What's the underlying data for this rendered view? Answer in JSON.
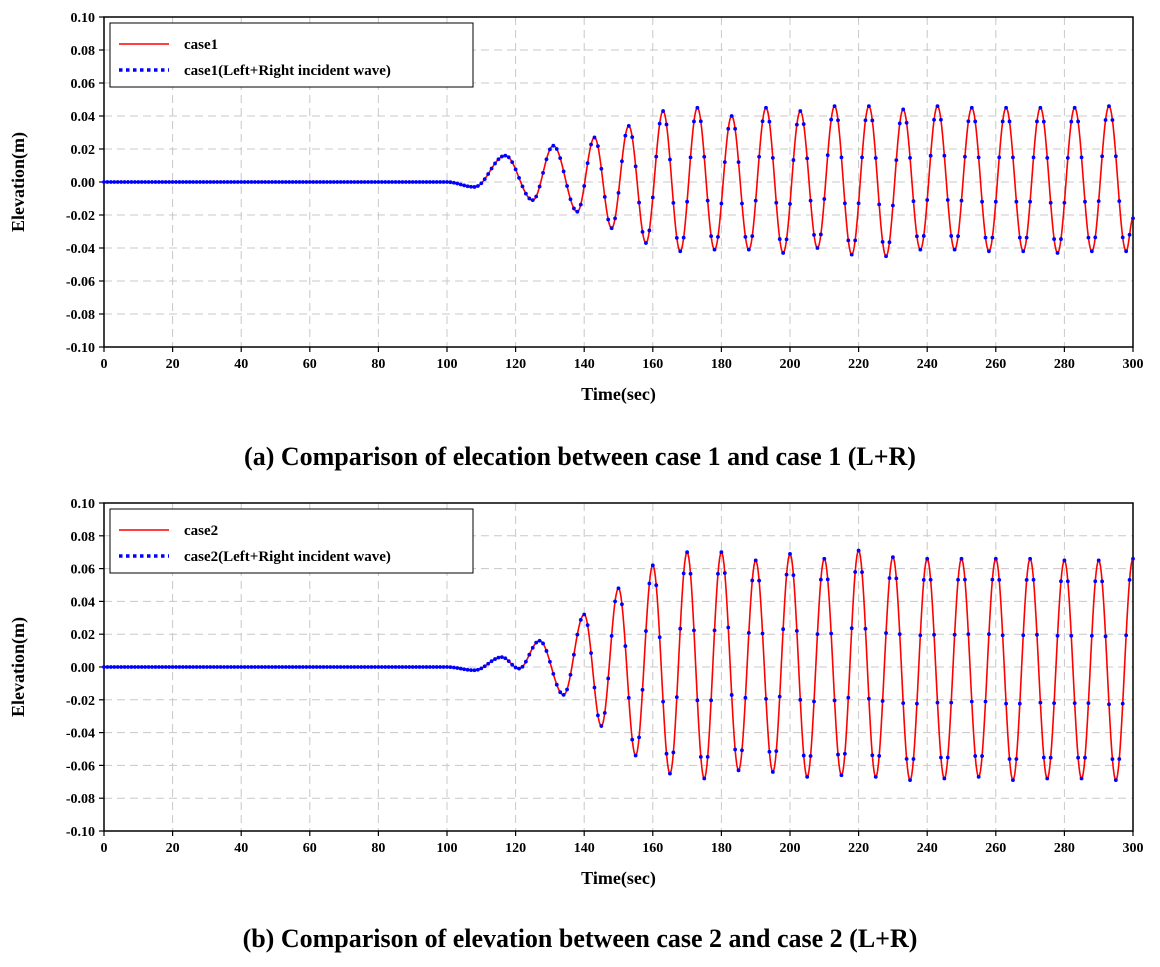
{
  "colors": {
    "series_solid": "#ff0000",
    "series_dotted": "#0000ff",
    "grid": "#c8c8c8"
  },
  "chart_data": [
    {
      "type": "line",
      "caption": "(a) Comparison of elecation between case 1 and case 1 (L+R)",
      "xlabel": "Time(sec)",
      "ylabel": "Elevation(m)",
      "xlim": [
        0,
        300
      ],
      "ylim": [
        -0.1,
        0.1
      ],
      "xticks": [
        0,
        20,
        40,
        60,
        80,
        100,
        120,
        140,
        160,
        180,
        200,
        220,
        240,
        260,
        280,
        300
      ],
      "yticks": [
        0.1,
        0.08,
        0.06,
        0.04,
        0.02,
        0.0,
        -0.02,
        -0.04,
        -0.06,
        -0.08,
        -0.1
      ],
      "xtick_labels": [
        "0",
        "20",
        "40",
        "60",
        "80",
        "100",
        "120",
        "140",
        "160",
        "180",
        "200",
        "220",
        "240",
        "260",
        "280",
        "300"
      ],
      "ytick_labels": [
        "0.10",
        "0.08",
        "0.06",
        "0.04",
        "0.02",
        "0.00",
        "-0.02",
        "-0.04",
        "-0.06",
        "-0.08",
        "-0.10"
      ],
      "grid": true,
      "legend_position": "top-left",
      "series": [
        {
          "name": "case1",
          "style": "solid",
          "color": "#ff0000"
        },
        {
          "name": "case1(Left+Right  incident wave)",
          "style": "dotted",
          "color": "#0000ff"
        }
      ],
      "extrema": {
        "t": [
          0,
          100,
          108,
          117,
          125,
          131,
          138,
          143,
          148,
          153,
          158,
          163,
          168,
          173,
          178,
          183,
          188,
          193,
          198,
          203,
          208,
          213,
          218,
          223,
          228,
          233,
          238,
          243,
          248,
          253,
          258,
          263,
          268,
          273,
          278,
          283,
          288,
          293,
          298,
          300
        ],
        "elevation": [
          0,
          0,
          -0.003,
          0.016,
          -0.011,
          0.022,
          -0.018,
          0.027,
          -0.028,
          0.034,
          -0.037,
          0.043,
          -0.042,
          0.045,
          -0.041,
          0.04,
          -0.041,
          0.045,
          -0.043,
          0.043,
          -0.04,
          0.046,
          -0.044,
          0.046,
          -0.045,
          0.044,
          -0.041,
          0.046,
          -0.041,
          0.045,
          -0.042,
          0.045,
          -0.042,
          0.045,
          -0.043,
          0.045,
          -0.042,
          0.046,
          -0.042,
          -0.022
        ]
      }
    },
    {
      "type": "line",
      "caption": "(b) Comparison of elevation between case 2 and case 2 (L+R)",
      "xlabel": "Time(sec)",
      "ylabel": "Elevation(m)",
      "xlim": [
        0,
        300
      ],
      "ylim": [
        -0.1,
        0.1
      ],
      "xticks": [
        0,
        20,
        40,
        60,
        80,
        100,
        120,
        140,
        160,
        180,
        200,
        220,
        240,
        260,
        280,
        300
      ],
      "yticks": [
        0.1,
        0.08,
        0.06,
        0.04,
        0.02,
        0.0,
        -0.02,
        -0.04,
        -0.06,
        -0.08,
        -0.1
      ],
      "xtick_labels": [
        "0",
        "20",
        "40",
        "60",
        "80",
        "100",
        "120",
        "140",
        "160",
        "180",
        "200",
        "220",
        "240",
        "260",
        "280",
        "300"
      ],
      "ytick_labels": [
        "0.10",
        "0.08",
        "0.06",
        "0.04",
        "0.02",
        "0.00",
        "-0.02",
        "-0.04",
        "-0.06",
        "-0.08",
        "-0.10"
      ],
      "grid": true,
      "legend_position": "top-left",
      "series": [
        {
          "name": "case2",
          "style": "solid",
          "color": "#ff0000"
        },
        {
          "name": "case2(Left+Right  incident wave)",
          "style": "dotted",
          "color": "#0000ff"
        }
      ],
      "extrema": {
        "t": [
          0,
          100,
          108,
          116,
          121,
          127,
          134,
          140,
          145,
          150,
          155,
          160,
          165,
          170,
          175,
          180,
          185,
          190,
          195,
          200,
          205,
          210,
          215,
          220,
          225,
          230,
          235,
          240,
          245,
          250,
          255,
          260,
          265,
          270,
          275,
          280,
          285,
          290,
          295,
          300
        ],
        "elevation": [
          0,
          0,
          -0.002,
          0.006,
          -0.001,
          0.016,
          -0.017,
          0.032,
          -0.036,
          0.048,
          -0.054,
          0.062,
          -0.065,
          0.07,
          -0.068,
          0.07,
          -0.063,
          0.065,
          -0.064,
          0.069,
          -0.067,
          0.066,
          -0.066,
          0.071,
          -0.067,
          0.067,
          -0.069,
          0.066,
          -0.068,
          0.066,
          -0.067,
          0.066,
          -0.069,
          0.066,
          -0.068,
          0.065,
          -0.068,
          0.065,
          -0.069,
          0.066
        ]
      }
    }
  ]
}
